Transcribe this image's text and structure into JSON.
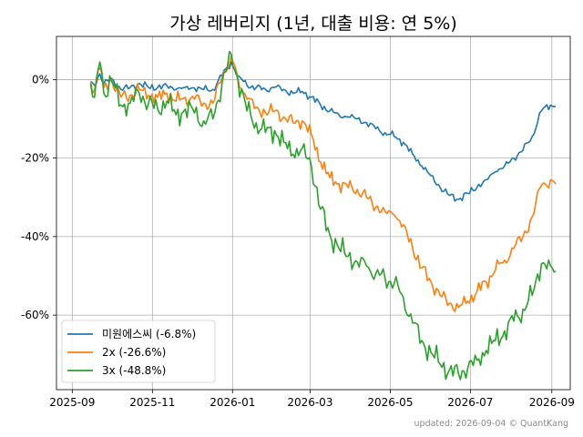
{
  "chart_data": {
    "type": "line",
    "title": "가상 레버리지 (1년, 대출 비용: 연 5%)",
    "xlabel": "",
    "ylabel": "",
    "x_ticks": [
      "2025-09",
      "2025-11",
      "2026-01",
      "2026-03",
      "2026-05",
      "2026-07",
      "2026-09"
    ],
    "x_tick_dates": [
      "2025-09-01",
      "2025-11-01",
      "2026-01-01",
      "2026-03-01",
      "2026-05-01",
      "2026-07-01",
      "2026-09-01"
    ],
    "xlim": [
      "2025-08-20",
      "2026-09-15"
    ],
    "y_ticks": [
      0,
      -20,
      -40,
      -60
    ],
    "y_tick_labels": [
      "0%",
      "-20%",
      "-40%",
      "-60%"
    ],
    "ylim": [
      -79,
      11
    ],
    "grid": true,
    "legend_position": "lower-left",
    "footer": "updated: 2026-09-04 © QuantKang",
    "colors": {
      "s1": "#1f77b4",
      "s2": "#ff7f0e",
      "s3": "#2ca02c"
    },
    "series": [
      {
        "name": "미원에스씨 (-6.8%)",
        "color": "#1f77b4",
        "points": [
          [
            "2025-09-15",
            -0.5
          ],
          [
            "2025-09-18",
            -1.5
          ],
          [
            "2025-09-22",
            1.5
          ],
          [
            "2025-09-25",
            -1.0
          ],
          [
            "2025-10-01",
            0.3
          ],
          [
            "2025-10-08",
            -2.5
          ],
          [
            "2025-10-15",
            -2.0
          ],
          [
            "2025-10-22",
            -1.0
          ],
          [
            "2025-10-29",
            -2.0
          ],
          [
            "2025-11-05",
            -2.0
          ],
          [
            "2025-11-12",
            -1.5
          ],
          [
            "2025-11-19",
            -2.5
          ],
          [
            "2025-11-26",
            -2.0
          ],
          [
            "2025-12-03",
            -2.2
          ],
          [
            "2025-12-10",
            -2.5
          ],
          [
            "2025-12-17",
            -2.5
          ],
          [
            "2025-12-24",
            1.0
          ],
          [
            "2025-12-31",
            4.5
          ],
          [
            "2026-01-05",
            1.0
          ],
          [
            "2026-01-12",
            -1.5
          ],
          [
            "2026-01-19",
            -2.0
          ],
          [
            "2026-01-26",
            -2.5
          ],
          [
            "2026-02-02",
            -2.0
          ],
          [
            "2026-02-09",
            -2.5
          ],
          [
            "2026-02-16",
            -3.5
          ],
          [
            "2026-02-23",
            -3.0
          ],
          [
            "2026-03-02",
            -4.5
          ],
          [
            "2026-03-09",
            -6.5
          ],
          [
            "2026-03-16",
            -8.0
          ],
          [
            "2026-03-23",
            -9.0
          ],
          [
            "2026-03-30",
            -9.5
          ],
          [
            "2026-04-06",
            -10.0
          ],
          [
            "2026-04-13",
            -11.0
          ],
          [
            "2026-04-20",
            -12.5
          ],
          [
            "2026-04-27",
            -13.5
          ],
          [
            "2026-05-04",
            -14.5
          ],
          [
            "2026-05-11",
            -16.0
          ],
          [
            "2026-05-18",
            -19.0
          ],
          [
            "2026-05-25",
            -22.0
          ],
          [
            "2026-06-01",
            -24.5
          ],
          [
            "2026-06-08",
            -27.5
          ],
          [
            "2026-06-15",
            -29.5
          ],
          [
            "2026-06-22",
            -30.5
          ],
          [
            "2026-06-29",
            -29.0
          ],
          [
            "2026-07-06",
            -27.5
          ],
          [
            "2026-07-13",
            -25.5
          ],
          [
            "2026-07-20",
            -23.5
          ],
          [
            "2026-07-27",
            -22.0
          ],
          [
            "2026-08-03",
            -20.0
          ],
          [
            "2026-08-10",
            -18.0
          ],
          [
            "2026-08-17",
            -14.5
          ],
          [
            "2026-08-24",
            -8.0
          ],
          [
            "2026-08-31",
            -6.5
          ],
          [
            "2026-09-04",
            -6.8
          ]
        ]
      },
      {
        "name": "2x (-26.6%)",
        "color": "#ff7f0e",
        "points": [
          [
            "2025-09-15",
            -0.5
          ],
          [
            "2025-09-18",
            -2.5
          ],
          [
            "2025-09-22",
            3.0
          ],
          [
            "2025-09-25",
            -2.0
          ],
          [
            "2025-10-01",
            0.0
          ],
          [
            "2025-10-08",
            -4.5
          ],
          [
            "2025-10-15",
            -4.0
          ],
          [
            "2025-10-22",
            -2.5
          ],
          [
            "2025-10-29",
            -4.0
          ],
          [
            "2025-11-05",
            -4.5
          ],
          [
            "2025-11-12",
            -3.5
          ],
          [
            "2025-11-19",
            -5.5
          ],
          [
            "2025-11-26",
            -4.5
          ],
          [
            "2025-12-03",
            -5.0
          ],
          [
            "2025-12-10",
            -6.0
          ],
          [
            "2025-12-17",
            -6.0
          ],
          [
            "2025-12-24",
            0.5
          ],
          [
            "2025-12-31",
            6.0
          ],
          [
            "2026-01-05",
            0.5
          ],
          [
            "2026-01-12",
            -5.0
          ],
          [
            "2026-01-19",
            -7.0
          ],
          [
            "2026-01-26",
            -8.5
          ],
          [
            "2026-02-02",
            -8.0
          ],
          [
            "2026-02-09",
            -9.5
          ],
          [
            "2026-02-16",
            -11.0
          ],
          [
            "2026-02-23",
            -10.5
          ],
          [
            "2026-03-02",
            -14.0
          ],
          [
            "2026-03-09",
            -21.0
          ],
          [
            "2026-03-16",
            -25.0
          ],
          [
            "2026-03-23",
            -26.5
          ],
          [
            "2026-03-30",
            -27.5
          ],
          [
            "2026-04-06",
            -28.0
          ],
          [
            "2026-04-13",
            -30.0
          ],
          [
            "2026-04-20",
            -32.5
          ],
          [
            "2026-04-27",
            -33.5
          ],
          [
            "2026-05-04",
            -34.5
          ],
          [
            "2026-05-11",
            -37.0
          ],
          [
            "2026-05-18",
            -43.0
          ],
          [
            "2026-05-25",
            -48.0
          ],
          [
            "2026-06-01",
            -51.5
          ],
          [
            "2026-06-08",
            -55.0
          ],
          [
            "2026-06-15",
            -57.0
          ],
          [
            "2026-06-22",
            -58.0
          ],
          [
            "2026-06-29",
            -56.5
          ],
          [
            "2026-07-06",
            -54.0
          ],
          [
            "2026-07-13",
            -51.5
          ],
          [
            "2026-07-20",
            -48.5
          ],
          [
            "2026-07-27",
            -46.0
          ],
          [
            "2026-08-03",
            -43.0
          ],
          [
            "2026-08-10",
            -40.0
          ],
          [
            "2026-08-17",
            -35.0
          ],
          [
            "2026-08-24",
            -27.0
          ],
          [
            "2026-08-31",
            -25.5
          ],
          [
            "2026-09-04",
            -26.6
          ]
        ]
      },
      {
        "name": "3x (-48.8%)",
        "color": "#2ca02c",
        "points": [
          [
            "2025-09-15",
            -1.0
          ],
          [
            "2025-09-18",
            -4.5
          ],
          [
            "2025-09-22",
            4.5
          ],
          [
            "2025-09-25",
            -3.5
          ],
          [
            "2025-10-01",
            -0.5
          ],
          [
            "2025-10-08",
            -6.5
          ],
          [
            "2025-10-15",
            -6.0
          ],
          [
            "2025-10-22",
            -3.5
          ],
          [
            "2025-10-29",
            -6.0
          ],
          [
            "2025-11-05",
            -7.5
          ],
          [
            "2025-11-12",
            -5.5
          ],
          [
            "2025-11-19",
            -9.0
          ],
          [
            "2025-11-26",
            -7.5
          ],
          [
            "2025-12-03",
            -8.5
          ],
          [
            "2025-12-10",
            -10.5
          ],
          [
            "2025-12-17",
            -10.0
          ],
          [
            "2025-12-24",
            -1.0
          ],
          [
            "2025-12-31",
            6.5
          ],
          [
            "2026-01-05",
            0.0
          ],
          [
            "2026-01-12",
            -8.0
          ],
          [
            "2026-01-19",
            -11.0
          ],
          [
            "2026-01-26",
            -13.5
          ],
          [
            "2026-02-02",
            -13.0
          ],
          [
            "2026-02-09",
            -16.0
          ],
          [
            "2026-02-16",
            -19.0
          ],
          [
            "2026-02-23",
            -17.5
          ],
          [
            "2026-03-02",
            -22.0
          ],
          [
            "2026-03-09",
            -33.0
          ],
          [
            "2026-03-16",
            -39.5
          ],
          [
            "2026-03-23",
            -43.0
          ],
          [
            "2026-03-30",
            -45.0
          ],
          [
            "2026-04-06",
            -46.5
          ],
          [
            "2026-04-13",
            -47.5
          ],
          [
            "2026-04-20",
            -49.5
          ],
          [
            "2026-04-27",
            -50.5
          ],
          [
            "2026-05-04",
            -52.0
          ],
          [
            "2026-05-11",
            -55.5
          ],
          [
            "2026-05-18",
            -62.0
          ],
          [
            "2026-05-25",
            -66.5
          ],
          [
            "2026-06-01",
            -69.5
          ],
          [
            "2026-06-08",
            -72.5
          ],
          [
            "2026-06-15",
            -74.0
          ],
          [
            "2026-06-22",
            -75.0
          ],
          [
            "2026-06-29",
            -73.5
          ],
          [
            "2026-07-06",
            -71.5
          ],
          [
            "2026-07-13",
            -69.0
          ],
          [
            "2026-07-20",
            -66.5
          ],
          [
            "2026-07-27",
            -64.0
          ],
          [
            "2026-08-03",
            -61.5
          ],
          [
            "2026-08-10",
            -58.5
          ],
          [
            "2026-08-17",
            -55.0
          ],
          [
            "2026-08-24",
            -47.0
          ],
          [
            "2026-08-31",
            -47.5
          ],
          [
            "2026-09-04",
            -48.8
          ]
        ]
      }
    ]
  }
}
